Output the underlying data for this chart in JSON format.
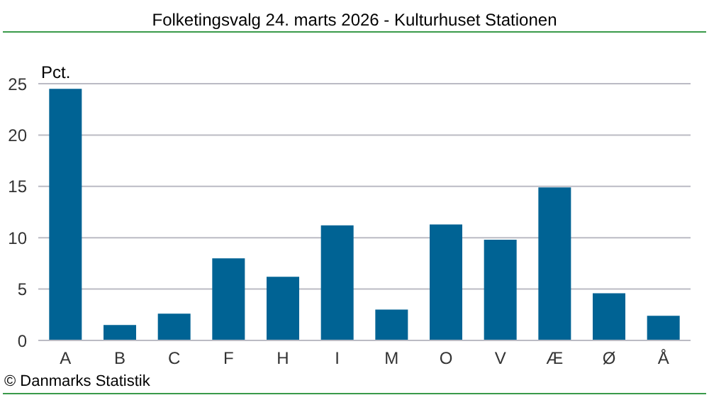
{
  "chart_data": {
    "type": "bar",
    "title": "Folketingsvalg 24. marts 2026 - Kulturhuset Stationen",
    "ylabel": "Pct.",
    "categories": [
      "A",
      "B",
      "C",
      "F",
      "H",
      "I",
      "M",
      "O",
      "V",
      "Æ",
      "Ø",
      "Å"
    ],
    "values": [
      24.5,
      1.5,
      2.6,
      8.0,
      6.2,
      11.2,
      3.0,
      11.3,
      9.8,
      14.9,
      4.6,
      2.4
    ],
    "color": "#006394",
    "ylim": [
      0,
      25
    ],
    "yticks": [
      0,
      5,
      10,
      15,
      20,
      25
    ],
    "grid": "y",
    "legend": false,
    "annotations": [
      "© Danmarks Statistik"
    ]
  }
}
